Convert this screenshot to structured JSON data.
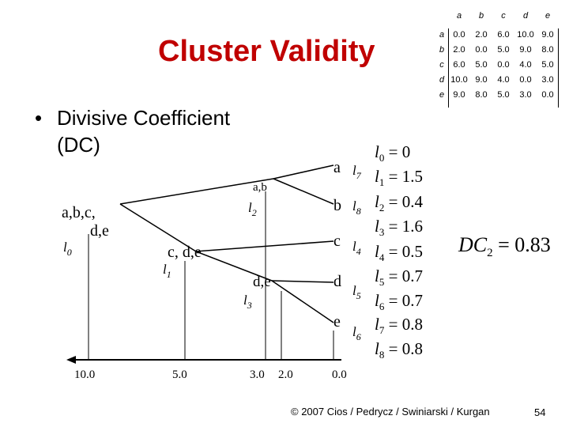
{
  "title": "Cluster Validity",
  "bullet": {
    "line1": "Divisive Coefficient",
    "line2": "(DC)"
  },
  "matrix": {
    "columns": [
      "a",
      "b",
      "c",
      "d",
      "e"
    ],
    "rows": [
      {
        "label": "a",
        "values": [
          "0.0",
          "2.0",
          "6.0",
          "10.0",
          "9.0"
        ]
      },
      {
        "label": "b",
        "values": [
          "2.0",
          "0.0",
          "5.0",
          "9.0",
          "8.0"
        ]
      },
      {
        "label": "c",
        "values": [
          "6.0",
          "5.0",
          "0.0",
          "4.0",
          "5.0"
        ]
      },
      {
        "label": "d",
        "values": [
          "10.0",
          "9.0",
          "4.0",
          "0.0",
          "3.0"
        ]
      },
      {
        "label": "e",
        "values": [
          "9.0",
          "8.0",
          "5.0",
          "3.0",
          "0.0"
        ]
      }
    ]
  },
  "diagram": {
    "nodes": {
      "abcde_line1": "a,b,c,",
      "abcde_line2": "d,e",
      "ab": "a,b",
      "cde": "c, d,e",
      "de": "d,e",
      "a": "a",
      "b": "b",
      "c": "c",
      "d": "d",
      "e": "e"
    },
    "level_labels": {
      "l0": {
        "base": "l",
        "sub": "0"
      },
      "l1": {
        "base": "l",
        "sub": "1"
      },
      "l2": {
        "base": "l",
        "sub": "2"
      },
      "l3": {
        "base": "l",
        "sub": "3"
      },
      "l4": {
        "base": "l",
        "sub": "4"
      },
      "l5": {
        "base": "l",
        "sub": "5"
      },
      "l6": {
        "base": "l",
        "sub": "6"
      },
      "l7": {
        "base": "l",
        "sub": "7"
      },
      "l8": {
        "base": "l",
        "sub": "8"
      }
    },
    "axis_ticks": [
      "10.0",
      "5.0",
      "3.0",
      "2.0",
      "0.0"
    ]
  },
  "levels": [
    {
      "sub": "0",
      "value": "0"
    },
    {
      "sub": "1",
      "value": "1.5"
    },
    {
      "sub": "2",
      "value": "0.4"
    },
    {
      "sub": "3",
      "value": "1.6"
    },
    {
      "sub": "4",
      "value": "0.5"
    },
    {
      "sub": "5",
      "value": "0.7"
    },
    {
      "sub": "6",
      "value": "0.7"
    },
    {
      "sub": "7",
      "value": "0.8"
    },
    {
      "sub": "8",
      "value": "0.8"
    }
  ],
  "dc": {
    "base": "DC",
    "sub": "2",
    "value": "0.83"
  },
  "footer": "© 2007 Cios / Pedrycz / Swiniarski / Kurgan",
  "page_number": "54"
}
